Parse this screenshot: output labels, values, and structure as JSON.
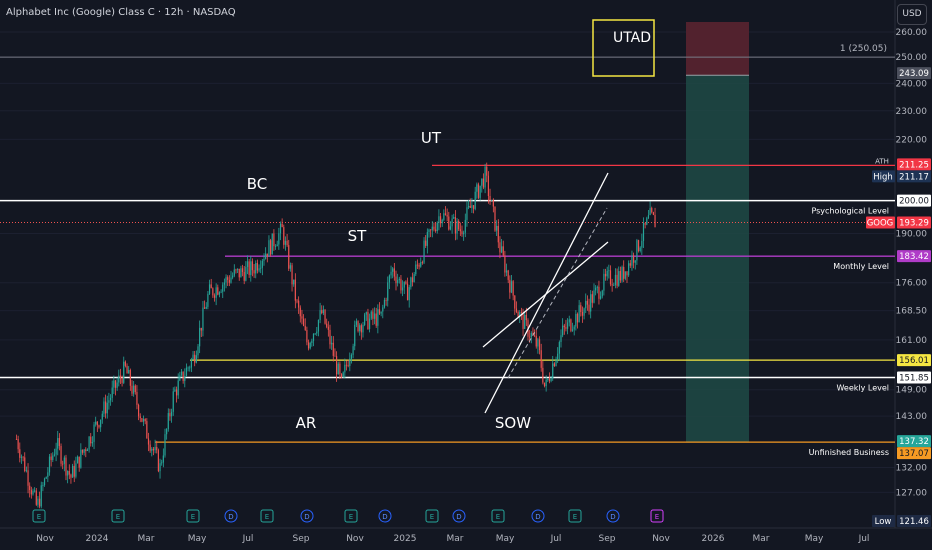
{
  "header": {
    "title": "Alphabet Inc (Google) Class C · 12h · NASDAQ"
  },
  "currency_button": "USD",
  "colors": {
    "background": "#131722",
    "up": "#26a69a",
    "down": "#ef5350",
    "white_level": "#ffffff",
    "magenta_level": "#b03cc8",
    "yellow_level": "#f5e642",
    "orange_level": "#f59a23",
    "red_level": "#f23645",
    "channel": "#ffffff",
    "target_zone": "#1e4a45",
    "stop_zone": "#5a2430"
  },
  "chart_data": {
    "type": "candlestick",
    "symbol": "GOOG",
    "title": "Alphabet Inc (Google) Class C · 12h · NASDAQ",
    "price_scale": "log",
    "ylim": [
      121.46,
      265
    ],
    "price_ticks": [
      127.0,
      132.0,
      143.0,
      149.0,
      161.0,
      168.5,
      176.0,
      190.0,
      220.0,
      230.0,
      240.0,
      250.0,
      260.0
    ],
    "x_ticks": [
      "Nov",
      "2024",
      "Mar",
      "May",
      "Jul",
      "Sep",
      "Nov",
      "2025",
      "Mar",
      "May",
      "Jul",
      "Sep",
      "Nov",
      "2026",
      "Mar",
      "May",
      "Jul"
    ],
    "anchors": [
      [
        "2023-10-10",
        138
      ],
      [
        "2023-10-31",
        124
      ],
      [
        "2023-11-20",
        137
      ],
      [
        "2023-12-05",
        130
      ],
      [
        "2023-12-31",
        141
      ],
      [
        "2024-01-30",
        154
      ],
      [
        "2024-02-20",
        140
      ],
      [
        "2024-03-06",
        132
      ],
      [
        "2024-03-20",
        148
      ],
      [
        "2024-04-10",
        157
      ],
      [
        "2024-04-25",
        173
      ],
      [
        "2024-05-20",
        178
      ],
      [
        "2024-06-10",
        180
      ],
      [
        "2024-07-10",
        191
      ],
      [
        "2024-07-25",
        170
      ],
      [
        "2024-08-05",
        160
      ],
      [
        "2024-08-20",
        168
      ],
      [
        "2024-09-09",
        150
      ],
      [
        "2024-09-25",
        165
      ],
      [
        "2024-10-20",
        167
      ],
      [
        "2024-10-31",
        180
      ],
      [
        "2024-11-15",
        173
      ],
      [
        "2024-12-10",
        190
      ],
      [
        "2024-12-20",
        196
      ],
      [
        "2025-01-10",
        191
      ],
      [
        "2025-02-04",
        208
      ],
      [
        "2025-02-20",
        185
      ],
      [
        "2025-03-10",
        168
      ],
      [
        "2025-03-31",
        159
      ],
      [
        "2025-04-07",
        149
      ],
      [
        "2025-04-25",
        163
      ],
      [
        "2025-05-20",
        170
      ],
      [
        "2025-06-10",
        177
      ],
      [
        "2025-06-25",
        178
      ],
      [
        "2025-07-10",
        185
      ],
      [
        "2025-07-24",
        195
      ],
      [
        "2025-07-31",
        193
      ]
    ],
    "last_price": 193.29,
    "levels": [
      {
        "label": "Psychological Level",
        "price": 200.0,
        "badge": "200.00",
        "color": "#ffffff"
      },
      {
        "label": "Monthly Level",
        "price": 183.42,
        "badge": "183.42",
        "color": "#b03cc8"
      },
      {
        "label": "Weekly Level",
        "price": 151.85,
        "badge": "151.85",
        "color": "#ffffff"
      },
      {
        "label": "",
        "price": 156.01,
        "badge": "156.01",
        "color": "#f5e642"
      },
      {
        "label": "Unfinished Business",
        "price": 137.32,
        "badge": "137.32",
        "color": "#f59a23"
      },
      {
        "label": "High",
        "price": 211.25,
        "badge": "211.25",
        "color": "#f23645"
      }
    ],
    "price_badges": {
      "ath": "ATH",
      "high_label": "High",
      "high_value": "211.17",
      "ath_value": "211.25",
      "goog_label": "GOOG",
      "goog_value": "193.29",
      "target_value": "243.09",
      "extra_value": "137.07",
      "low_label": "Low",
      "low_value": "121.46",
      "fib_label": "1 (250.05)"
    },
    "annotations": [
      "UTAD",
      "BC",
      "UT",
      "ST",
      "AR",
      "SOW"
    ],
    "events": [
      "E",
      "E",
      "E",
      "D",
      "E",
      "D",
      "E",
      "D",
      "E",
      "D",
      "E",
      "D",
      "E",
      "D",
      "E"
    ]
  }
}
